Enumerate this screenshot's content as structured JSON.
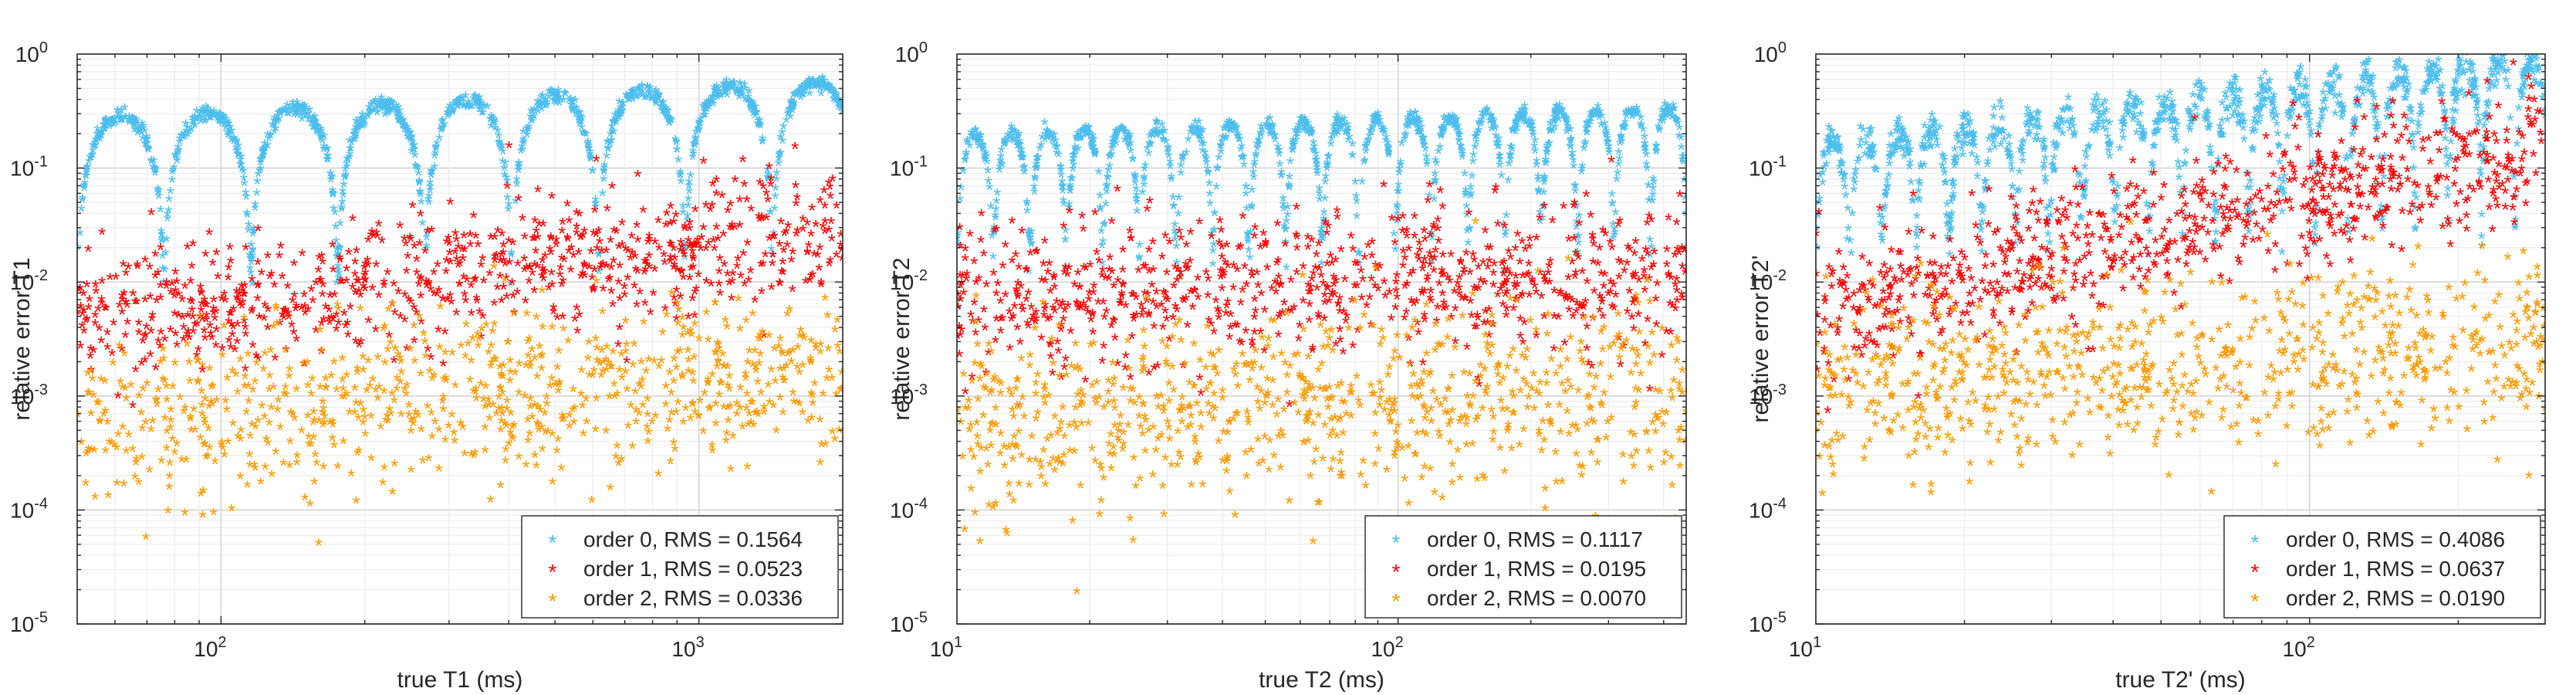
{
  "chart_data": [
    {
      "type": "scatter",
      "xscale": "log",
      "yscale": "log",
      "xlim": [
        50,
        2000
      ],
      "ylim": [
        1e-05,
        1
      ],
      "xlabel": "true T1 (ms)",
      "ylabel": "relative error T1",
      "xticks": [
        {
          "value": 100,
          "base": "10",
          "exp": "2"
        },
        {
          "value": 1000,
          "base": "10",
          "exp": "3"
        }
      ],
      "yticks": [
        {
          "value": 1e-05,
          "base": "10",
          "exp": "-5"
        },
        {
          "value": 0.0001,
          "base": "10",
          "exp": "-4"
        },
        {
          "value": 0.001,
          "base": "10",
          "exp": "-3"
        },
        {
          "value": 0.01,
          "base": "10",
          "exp": "-2"
        },
        {
          "value": 0.1,
          "base": "10",
          "exp": "-1"
        },
        {
          "value": 1,
          "base": "10",
          "exp": "0"
        }
      ],
      "grid": true,
      "legend_position": "bottom-right",
      "series": [
        {
          "name": "order 0, RMS = 0.1564",
          "color": "#4DBEEE",
          "model": {
            "kind": "arches",
            "x_start": 50,
            "count": 9,
            "ratio": 1.52,
            "peak_min": 0.25,
            "peak_max": 0.55,
            "trough": 0.015,
            "n": 1200,
            "scatter_sigma": 0.02
          }
        },
        {
          "name": "order 1, RMS = 0.0523",
          "color": "#FF0000",
          "model": {
            "kind": "band",
            "center_left": 0.0045,
            "center_right": 0.025,
            "sigma_decades": 0.3,
            "n": 800
          }
        },
        {
          "name": "order 2, RMS = 0.0336",
          "color": "#FF9900",
          "model": {
            "kind": "band",
            "center_left": 0.0006,
            "center_right": 0.0016,
            "sigma_decades": 0.38,
            "n": 800
          }
        }
      ]
    },
    {
      "type": "scatter",
      "xscale": "log",
      "yscale": "log",
      "xlim": [
        10,
        450
      ],
      "ylim": [
        1e-05,
        1
      ],
      "xlabel": "true T2 (ms)",
      "ylabel": "relative error T2",
      "xticks": [
        {
          "value": 10,
          "base": "10",
          "exp": "1"
        },
        {
          "value": 100,
          "base": "10",
          "exp": "2"
        }
      ],
      "yticks": [
        {
          "value": 1e-05,
          "base": "10",
          "exp": "-5"
        },
        {
          "value": 0.0001,
          "base": "10",
          "exp": "-4"
        },
        {
          "value": 0.001,
          "base": "10",
          "exp": "-3"
        },
        {
          "value": 0.01,
          "base": "10",
          "exp": "-2"
        },
        {
          "value": 0.1,
          "base": "10",
          "exp": "-1"
        },
        {
          "value": 1,
          "base": "10",
          "exp": "0"
        }
      ],
      "grid": true,
      "legend_position": "bottom-right",
      "series": [
        {
          "name": "order 0, RMS = 0.1117",
          "color": "#4DBEEE",
          "model": {
            "kind": "arches",
            "x_start": 10,
            "count": 20,
            "ratio": 1.21,
            "peak_min": 0.18,
            "peak_max": 0.32,
            "trough": 0.02,
            "n": 1200,
            "scatter_sigma": 0.03
          }
        },
        {
          "name": "order 1, RMS = 0.0195",
          "color": "#FF0000",
          "model": {
            "kind": "band",
            "center_left": 0.007,
            "center_right": 0.012,
            "sigma_decades": 0.32,
            "n": 800
          }
        },
        {
          "name": "order 2, RMS = 0.0070",
          "color": "#FF9900",
          "model": {
            "kind": "band",
            "center_left": 0.0006,
            "center_right": 0.0011,
            "sigma_decades": 0.42,
            "n": 800
          }
        }
      ]
    },
    {
      "type": "scatter",
      "xscale": "log",
      "yscale": "log",
      "xlim": [
        10,
        300
      ],
      "ylim": [
        1e-05,
        1
      ],
      "xlabel": "true T2' (ms)",
      "ylabel": "relative error T2'",
      "xticks": [
        {
          "value": 10,
          "base": "10",
          "exp": "1"
        },
        {
          "value": 100,
          "base": "10",
          "exp": "2"
        }
      ],
      "yticks": [
        {
          "value": 1e-05,
          "base": "10",
          "exp": "-5"
        },
        {
          "value": 0.0001,
          "base": "10",
          "exp": "-4"
        },
        {
          "value": 0.001,
          "base": "10",
          "exp": "-3"
        },
        {
          "value": 0.01,
          "base": "10",
          "exp": "-2"
        },
        {
          "value": 0.1,
          "base": "10",
          "exp": "-1"
        },
        {
          "value": 1,
          "base": "10",
          "exp": "0"
        }
      ],
      "grid": true,
      "legend_position": "bottom-right",
      "series": [
        {
          "name": "order 0, RMS = 0.4086",
          "color": "#4DBEEE",
          "model": {
            "kind": "arches",
            "x_start": 10,
            "count": 22,
            "ratio": 1.168,
            "peak_min": 0.15,
            "peak_max": 0.9,
            "trough": 0.03,
            "n": 1200,
            "scatter_sigma": 0.05
          }
        },
        {
          "name": "order 1, RMS = 0.0637",
          "color": "#FF0000",
          "model": {
            "kind": "band",
            "center_left": 0.005,
            "center_right": 0.15,
            "sigma_decades": 0.3,
            "n": 800
          }
        },
        {
          "name": "order 2, RMS = 0.0190",
          "color": "#FF9900",
          "model": {
            "kind": "band",
            "center_left": 0.001,
            "center_right": 0.003,
            "sigma_decades": 0.4,
            "n": 800
          }
        }
      ]
    }
  ]
}
